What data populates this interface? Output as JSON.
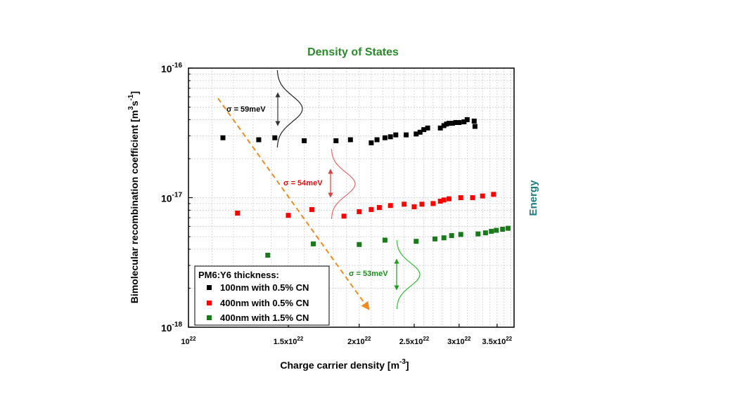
{
  "chart_data": {
    "type": "scatter",
    "title": "Density of States",
    "right_label": "Energy",
    "xlabel": "Charge carrier density [m⁻³]",
    "xlabel_base": "Charge carrier density [m",
    "xlabel_exp": "-3",
    "xlabel_close": "]",
    "ylabel_base": "Bimolecular recombination coefficient [m",
    "ylabel_exp1": "3",
    "ylabel_mid": "s",
    "ylabel_exp2": "-1",
    "ylabel_close": "]",
    "xscale": "log",
    "yscale": "log",
    "xlim": [
      1e+22,
      3.75e+22
    ],
    "ylim": [
      1e-18,
      1e-16
    ],
    "grid": true,
    "legend_position": "bottom-left",
    "x_ticks": [
      {
        "value": 1e+22,
        "mant": "10",
        "exp": "22"
      },
      {
        "value": 1.5e+22,
        "mant": "1.5x10",
        "exp": "22"
      },
      {
        "value": 2e+22,
        "mant": "2x10",
        "exp": "22"
      },
      {
        "value": 2.5e+22,
        "mant": "2.5x10",
        "exp": "22"
      },
      {
        "value": 3e+22,
        "mant": "3x10",
        "exp": "22"
      },
      {
        "value": 3.5e+22,
        "mant": "3.5x10",
        "exp": "22"
      }
    ],
    "y_ticks": [
      {
        "value": 1e-16,
        "mant": "10",
        "exp": "-16"
      },
      {
        "value": 1e-17,
        "mant": "10",
        "exp": "-17"
      },
      {
        "value": 1e-18,
        "mant": "10",
        "exp": "-18"
      }
    ],
    "legend_title": "PM6:Y6 thickness:",
    "series": [
      {
        "name": "100nm with 0.5% CN",
        "color": "#000000",
        "x": [
          1.15e+22,
          1.33e+22,
          1.42e+22,
          1.6e+22,
          1.82e+22,
          1.93e+22,
          2.1e+22,
          2.15e+22,
          2.22e+22,
          2.27e+22,
          2.32e+22,
          2.42e+22,
          2.52e+22,
          2.56e+22,
          2.6e+22,
          2.64e+22,
          2.78e+22,
          2.82e+22,
          2.85e+22,
          2.88e+22,
          2.92e+22,
          2.96e+22,
          3e+22,
          3.06e+22,
          3.1e+22,
          3.19e+22,
          3.2e+22
        ],
        "y": [
          2.9e-17,
          2.8e-17,
          2.9e-17,
          2.75e-17,
          2.75e-17,
          2.8e-17,
          2.65e-17,
          2.8e-17,
          2.9e-17,
          2.95e-17,
          3.05e-17,
          3.05e-17,
          3.1e-17,
          3.2e-17,
          3.35e-17,
          3.45e-17,
          3.45e-17,
          3.6e-17,
          3.7e-17,
          3.75e-17,
          3.75e-17,
          3.8e-17,
          3.8e-17,
          3.85e-17,
          4e-17,
          3.9e-17,
          3.55e-17
        ],
        "sigma": "σ = 59meV"
      },
      {
        "name": "400nm with 0.5% CN",
        "color": "#ff0000",
        "x": [
          1.22e+22,
          1.5e+22,
          1.65e+22,
          1.88e+22,
          2e+22,
          2.1e+22,
          2.17e+22,
          2.27e+22,
          2.4e+22,
          2.5e+22,
          2.58e+22,
          2.7e+22,
          2.78e+22,
          2.82e+22,
          2.88e+22,
          3.02e+22,
          3.17e+22,
          3.3e+22,
          3.45e+22
        ],
        "y": [
          7.6e-18,
          7.3e-18,
          8.1e-18,
          7.2e-18,
          7.8e-18,
          8.1e-18,
          8.4e-18,
          8.7e-18,
          8.9e-18,
          8.5e-18,
          8.9e-18,
          9e-18,
          9.4e-18,
          9.6e-18,
          9.8e-18,
          1e-17,
          1e-17,
          1.03e-17,
          1.06e-17
        ],
        "sigma": "σ = 54meV"
      },
      {
        "name": "400nm with 1.5% CN",
        "color": "#1a7a1a",
        "x": [
          1.38e+22,
          1.66e+22,
          2e+22,
          2.22e+22,
          2.52e+22,
          2.72e+22,
          2.82e+22,
          2.91e+22,
          3.02e+22,
          3.24e+22,
          3.34e+22,
          3.42e+22,
          3.49e+22,
          3.58e+22,
          3.66e+22
        ],
        "y": [
          3.6e-18,
          4.4e-18,
          4.35e-18,
          4.7e-18,
          4.6e-18,
          4.8e-18,
          4.9e-18,
          5.1e-18,
          5.2e-18,
          5.25e-18,
          5.35e-18,
          5.5e-18,
          5.6e-18,
          5.7e-18,
          5.8e-18
        ],
        "sigma": "σ = 53meV"
      }
    ]
  }
}
